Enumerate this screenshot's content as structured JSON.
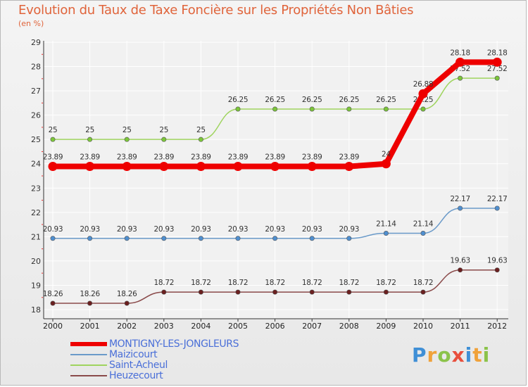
{
  "title": "Evolution du Taux de Taxe Foncière sur les Propriétés Non Bâties",
  "subtitle": "(en %)",
  "logo": {
    "text": "Proxiti",
    "letters": [
      {
        "ch": "P",
        "color": "#3f8fd6"
      },
      {
        "ch": "r",
        "color": "#f0a23a"
      },
      {
        "ch": "o",
        "color": "#8bc34a"
      },
      {
        "ch": "x",
        "color": "#e84e3c"
      },
      {
        "ch": "i",
        "color": "#3f8fd6"
      },
      {
        "ch": "t",
        "color": "#f0a23a"
      },
      {
        "ch": "i",
        "color": "#8bc34a"
      }
    ]
  },
  "chart_data": {
    "type": "line",
    "title": "Evolution du Taux de Taxe Foncière sur les Propriétés Non Bâties",
    "ylabel": "(en %)",
    "xlabel": "",
    "x": [
      "2000",
      "2001",
      "2002",
      "2003",
      "2004",
      "2005",
      "2006",
      "2007",
      "2008",
      "2009",
      "2010",
      "2011",
      "2012"
    ],
    "ylim": [
      18,
      29
    ],
    "yticks": [
      "18",
      "19",
      "20",
      "21",
      "22",
      "23",
      "24",
      "25",
      "26",
      "27",
      "28",
      "29"
    ],
    "grid": true,
    "legend_position": "bottom-left",
    "series": [
      {
        "name": "MONTIGNY-LES-JONGLEURS",
        "color": "#ee0000",
        "bold": true,
        "values": [
          23.89,
          23.89,
          23.89,
          23.89,
          23.89,
          23.89,
          23.89,
          23.89,
          23.89,
          24,
          26.88,
          28.18,
          28.18
        ],
        "labels": [
          "23.89",
          "23.89",
          "23.89",
          "23.89",
          "23.89",
          "23.89",
          "23.89",
          "23.89",
          "23.89",
          "24",
          "26.88",
          "28.18",
          "28.18"
        ]
      },
      {
        "name": "Maizicourt",
        "color": "#6a9ac9",
        "marker": "#4f8fd0",
        "values": [
          20.93,
          20.93,
          20.93,
          20.93,
          20.93,
          20.93,
          20.93,
          20.93,
          20.93,
          21.14,
          21.14,
          22.17,
          22.17
        ],
        "labels": [
          "20.93",
          "20.93",
          "20.93",
          "20.93",
          "20.93",
          "20.93",
          "20.93",
          "20.93",
          "20.93",
          "21.14",
          "21.14",
          "22.17",
          "22.17"
        ]
      },
      {
        "name": "Saint-Acheul",
        "color": "#9fd45f",
        "marker": "#7cc63a",
        "values": [
          25,
          25,
          25,
          25,
          25,
          26.25,
          26.25,
          26.25,
          26.25,
          26.25,
          26.25,
          27.52,
          27.52
        ],
        "labels": [
          "25",
          "25",
          "25",
          "25",
          "25",
          "26.25",
          "26.25",
          "26.25",
          "26.25",
          "26.25",
          "26.25",
          "27.52",
          "27.52"
        ]
      },
      {
        "name": "Heuzecourt",
        "color": "#8a4a4a",
        "marker": "#6b1f1f",
        "values": [
          18.26,
          18.26,
          18.26,
          18.72,
          18.72,
          18.72,
          18.72,
          18.72,
          18.72,
          18.72,
          18.72,
          19.63,
          19.63
        ],
        "labels": [
          "18.26",
          "18.26",
          "18.26",
          "18.72",
          "18.72",
          "18.72",
          "18.72",
          "18.72",
          "18.72",
          "18.72",
          "18.72",
          "19.63",
          "19.63"
        ]
      }
    ]
  }
}
